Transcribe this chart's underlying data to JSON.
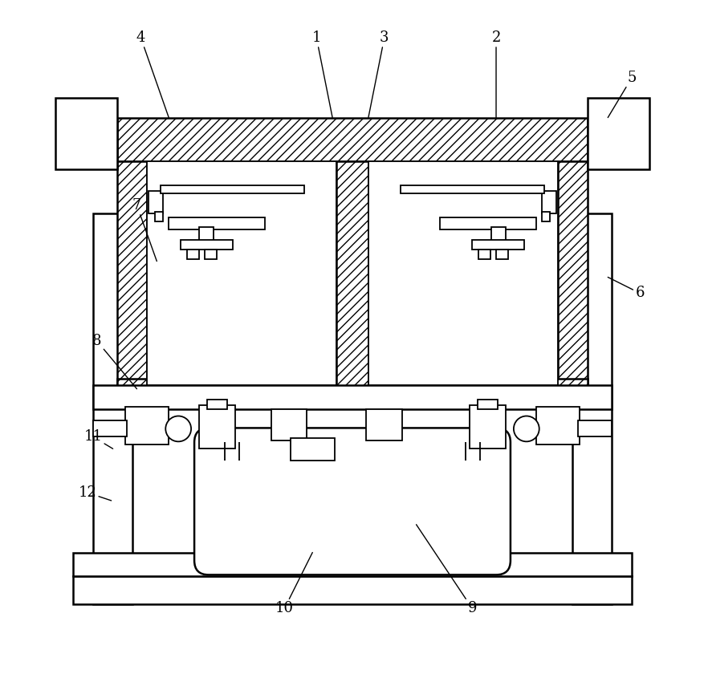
{
  "bg_color": "#ffffff",
  "fig_width": 8.78,
  "fig_height": 8.55,
  "lw": 1.3,
  "lw2": 1.8
}
